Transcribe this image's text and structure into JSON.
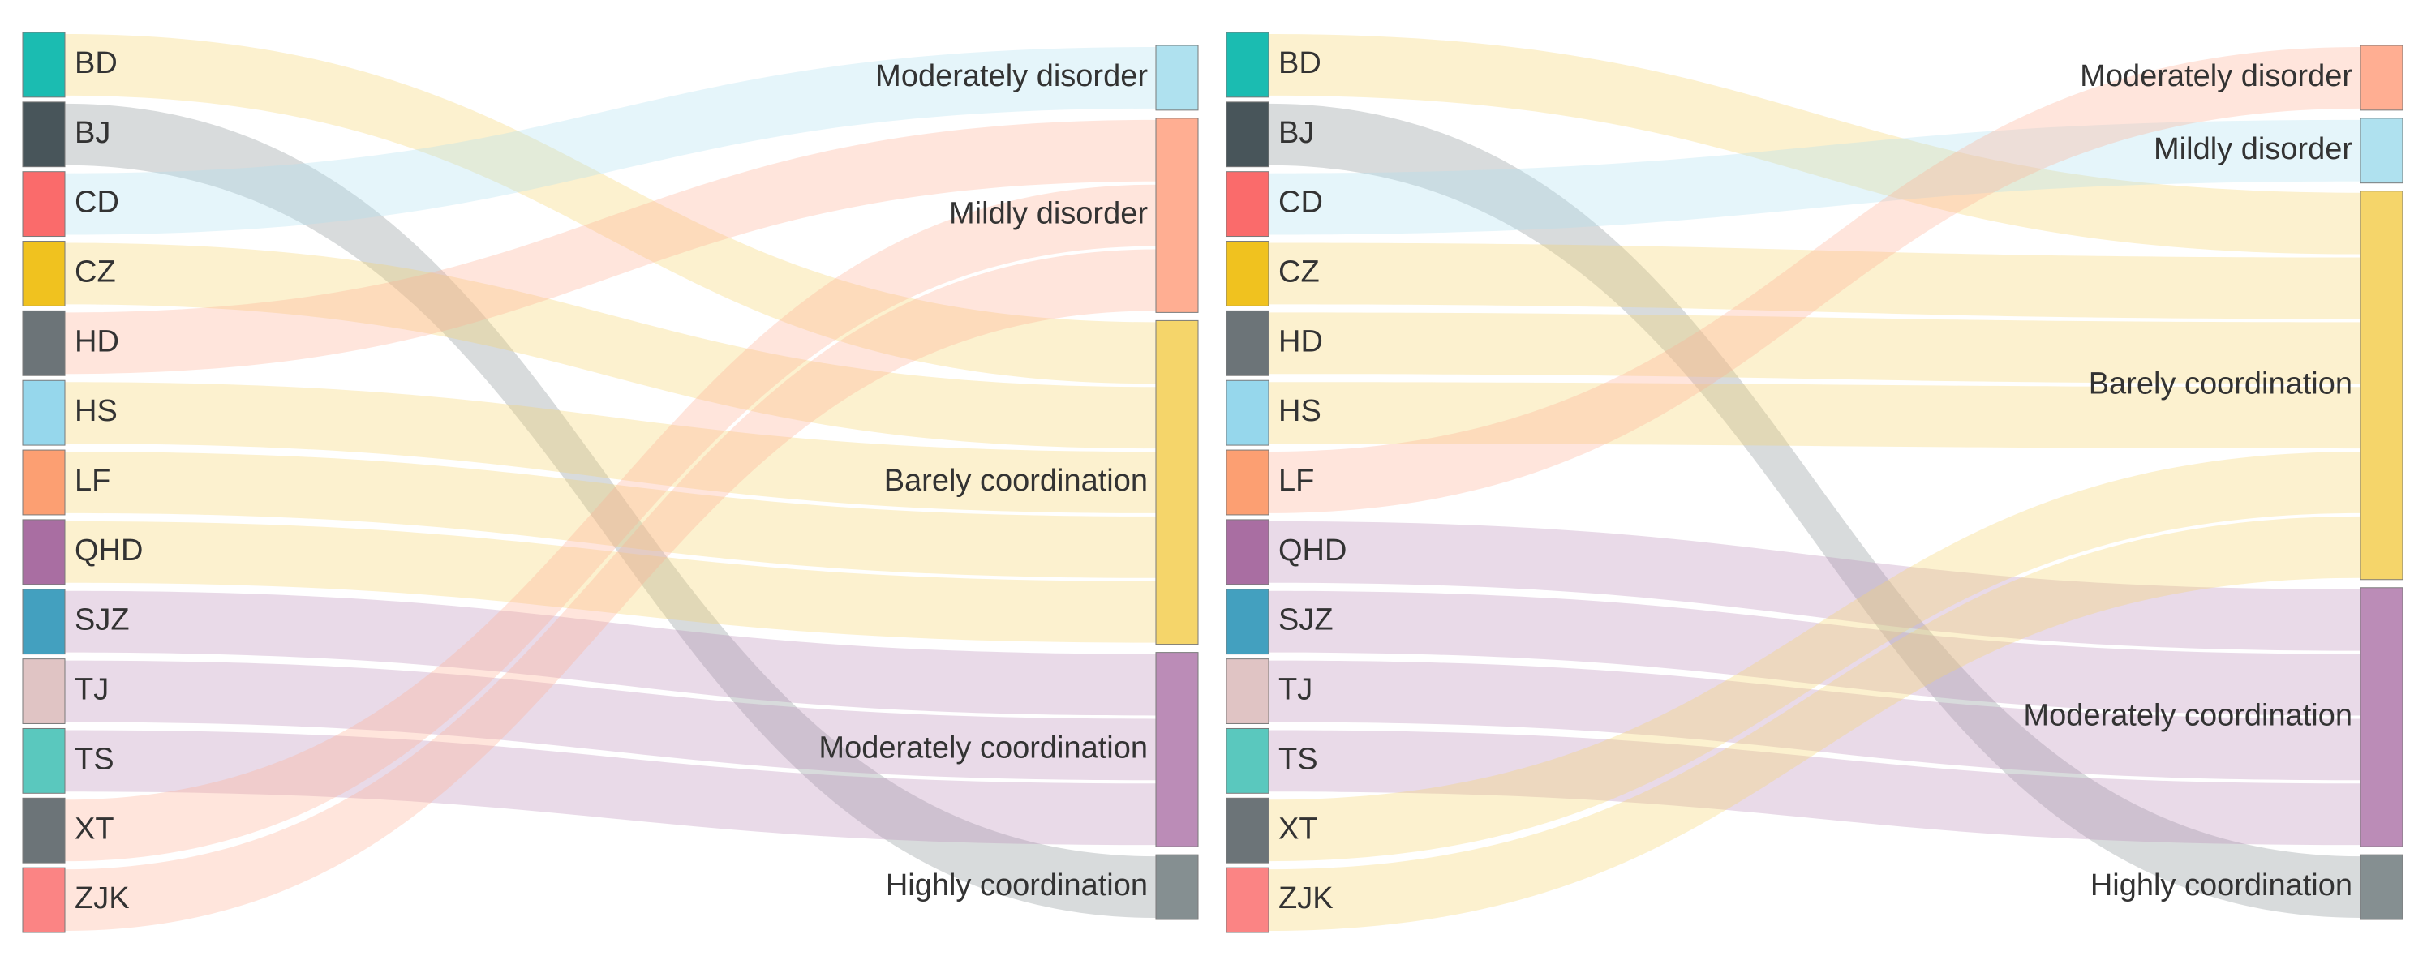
{
  "chart_data": [
    {
      "type": "sankey",
      "title": "",
      "sources": [
        {
          "name": "BD",
          "color": "#1bbcb1"
        },
        {
          "name": "BJ",
          "color": "#48555a"
        },
        {
          "name": "CD",
          "color": "#fa6b6b"
        },
        {
          "name": "CZ",
          "color": "#f0c21f"
        },
        {
          "name": "HD",
          "color": "#6c7478"
        },
        {
          "name": "HS",
          "color": "#96d7ec"
        },
        {
          "name": "LF",
          "color": "#fc9f72"
        },
        {
          "name": "QHD",
          "color": "#a96ea2"
        },
        {
          "name": "SJZ",
          "color": "#43a0bf"
        },
        {
          "name": "TJ",
          "color": "#e0c4c4"
        },
        {
          "name": "TS",
          "color": "#5ac8be"
        },
        {
          "name": "XT",
          "color": "#6c7478"
        },
        {
          "name": "ZJK",
          "color": "#fb8484"
        }
      ],
      "targets": [
        {
          "name": "Moderately disorder",
          "color": "#afe1ef"
        },
        {
          "name": "Mildly disorder",
          "color": "#ffae92"
        },
        {
          "name": "Barely coordination",
          "color": "#f5d56a"
        },
        {
          "name": "Moderately coordination",
          "color": "#bb8cb7"
        },
        {
          "name": "Highly coordination",
          "color": "#858f91"
        }
      ],
      "links": [
        {
          "source": "BD",
          "target": "Barely coordination",
          "value": 1
        },
        {
          "source": "BJ",
          "target": "Highly coordination",
          "value": 1
        },
        {
          "source": "CD",
          "target": "Moderately disorder",
          "value": 1
        },
        {
          "source": "CZ",
          "target": "Barely coordination",
          "value": 1
        },
        {
          "source": "HD",
          "target": "Mildly disorder",
          "value": 1
        },
        {
          "source": "HS",
          "target": "Barely coordination",
          "value": 1
        },
        {
          "source": "LF",
          "target": "Barely coordination",
          "value": 1
        },
        {
          "source": "QHD",
          "target": "Barely coordination",
          "value": 1
        },
        {
          "source": "SJZ",
          "target": "Moderately coordination",
          "value": 1
        },
        {
          "source": "TJ",
          "target": "Moderately coordination",
          "value": 1
        },
        {
          "source": "TS",
          "target": "Moderately coordination",
          "value": 1
        },
        {
          "source": "XT",
          "target": "Mildly disorder",
          "value": 1
        },
        {
          "source": "ZJK",
          "target": "Mildly disorder",
          "value": 1
        }
      ]
    },
    {
      "type": "sankey",
      "title": "",
      "sources": [
        {
          "name": "BD",
          "color": "#1bbcb1"
        },
        {
          "name": "BJ",
          "color": "#48555a"
        },
        {
          "name": "CD",
          "color": "#fa6b6b"
        },
        {
          "name": "CZ",
          "color": "#f0c21f"
        },
        {
          "name": "HD",
          "color": "#6c7478"
        },
        {
          "name": "HS",
          "color": "#96d7ec"
        },
        {
          "name": "LF",
          "color": "#fc9f72"
        },
        {
          "name": "QHD",
          "color": "#a96ea2"
        },
        {
          "name": "SJZ",
          "color": "#43a0bf"
        },
        {
          "name": "TJ",
          "color": "#e0c4c4"
        },
        {
          "name": "TS",
          "color": "#5ac8be"
        },
        {
          "name": "XT",
          "color": "#6c7478"
        },
        {
          "name": "ZJK",
          "color": "#fb8484"
        }
      ],
      "targets": [
        {
          "name": "Moderately disorder",
          "color": "#ffae92"
        },
        {
          "name": "Mildly disorder",
          "color": "#afe1ef"
        },
        {
          "name": "Barely coordination",
          "color": "#f5d56a"
        },
        {
          "name": "Moderately coordination",
          "color": "#bb8cb7"
        },
        {
          "name": "Highly coordination",
          "color": "#858f91"
        }
      ],
      "links": [
        {
          "source": "BD",
          "target": "Barely coordination",
          "value": 1
        },
        {
          "source": "BJ",
          "target": "Highly coordination",
          "value": 1
        },
        {
          "source": "CD",
          "target": "Mildly disorder",
          "value": 1
        },
        {
          "source": "CZ",
          "target": "Barely coordination",
          "value": 1
        },
        {
          "source": "HD",
          "target": "Barely coordination",
          "value": 1
        },
        {
          "source": "HS",
          "target": "Barely coordination",
          "value": 1
        },
        {
          "source": "LF",
          "target": "Moderately disorder",
          "value": 1
        },
        {
          "source": "QHD",
          "target": "Moderately coordination",
          "value": 1
        },
        {
          "source": "SJZ",
          "target": "Moderately coordination",
          "value": 1
        },
        {
          "source": "TJ",
          "target": "Moderately coordination",
          "value": 1
        },
        {
          "source": "TS",
          "target": "Moderately coordination",
          "value": 1
        },
        {
          "source": "XT",
          "target": "Barely coordination",
          "value": 1
        },
        {
          "source": "ZJK",
          "target": "Barely coordination",
          "value": 1
        }
      ]
    }
  ]
}
